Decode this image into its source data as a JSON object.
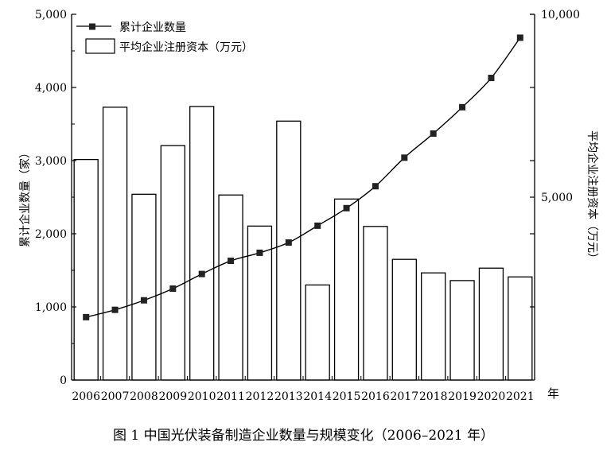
{
  "chart_data": {
    "type": "bar+line",
    "caption": "图 1  中国光伏装备制造企业数量与规模变化（2006–2021 年）",
    "categories": [
      "2006",
      "2007",
      "2008",
      "2009",
      "2010",
      "2011",
      "2012",
      "2013",
      "2014",
      "2015",
      "2016",
      "2017",
      "2018",
      "2019",
      "2020",
      "2021"
    ],
    "x_unit": "年",
    "left_axis": {
      "label": "累计企业数量（家）",
      "range": [
        0,
        5000
      ],
      "ticks": [
        0,
        1000,
        2000,
        3000,
        4000,
        5000
      ],
      "tick_labels": [
        "0",
        "1,000",
        "2,000",
        "3,000",
        "4,000",
        "5,000"
      ]
    },
    "right_axis": {
      "label": "平均企业注册资本（万元）",
      "range": [
        0,
        10000
      ],
      "ticks": [
        5000,
        10000
      ],
      "tick_labels": [
        "5,000",
        "10,000"
      ]
    },
    "series": [
      {
        "name": "累计企业数量",
        "type": "line",
        "axis": "left",
        "marker": "square",
        "values": [
          860,
          960,
          1090,
          1250,
          1450,
          1630,
          1740,
          1880,
          2110,
          2350,
          2650,
          3040,
          3370,
          3730,
          4130,
          4680
        ]
      },
      {
        "name": "平均企业注册资本（万元）",
        "type": "bar",
        "axis": "right",
        "values": [
          6030,
          7460,
          5080,
          6410,
          7480,
          5060,
          4210,
          7080,
          2600,
          4950,
          4200,
          3300,
          2930,
          2720,
          3060,
          2820
        ]
      }
    ],
    "legend": {
      "position": "top-left"
    },
    "grid": false,
    "colors": {
      "bar_fill": "#ffffff",
      "stroke": "#000000",
      "marker": "#222222"
    }
  }
}
